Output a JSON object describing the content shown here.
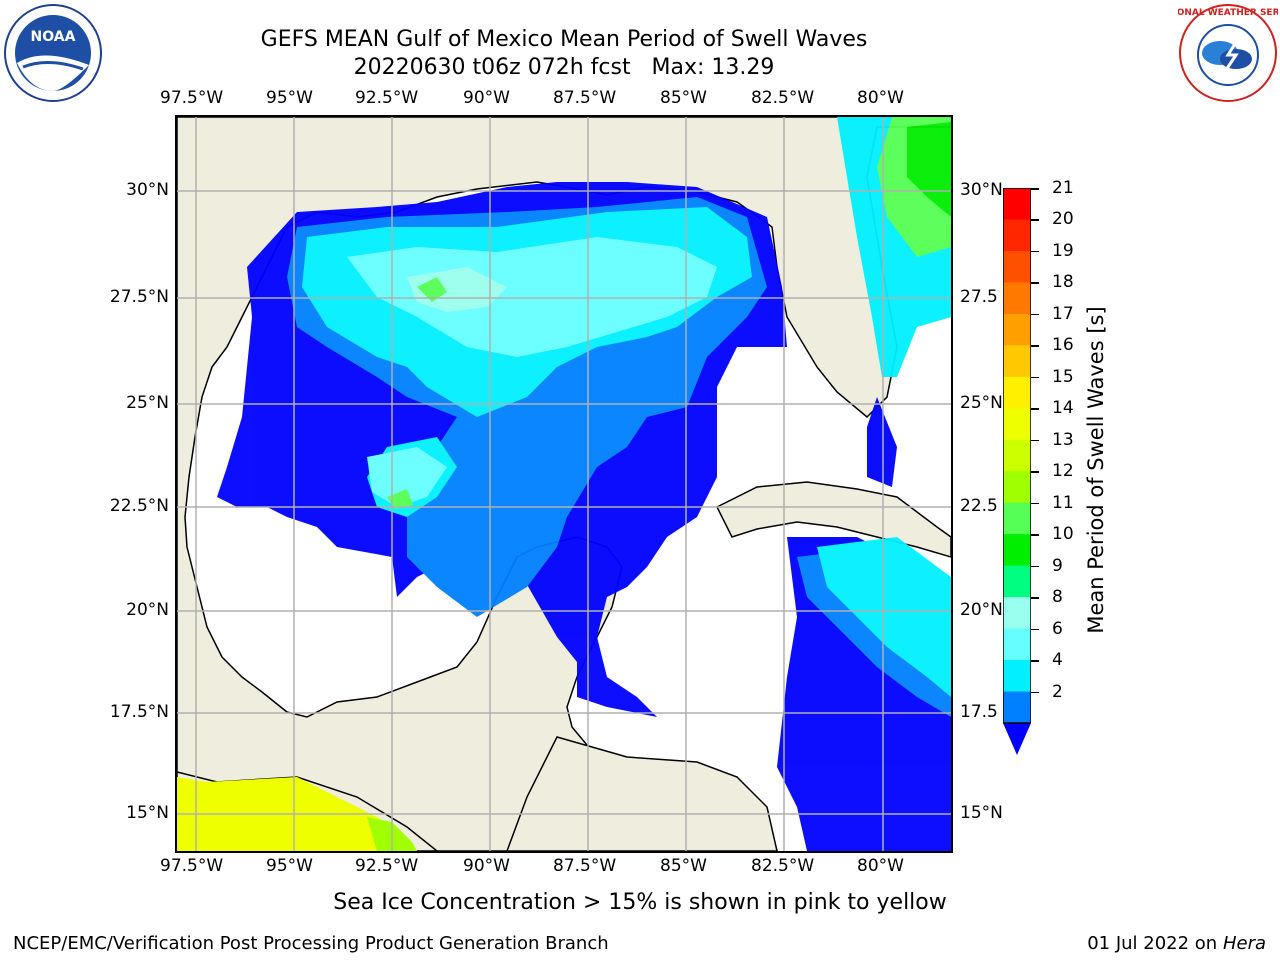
{
  "header": {
    "title_line1": "GEFS MEAN Gulf of Mexico Mean Period of Swell Waves",
    "title_line2": "20220630 t06z 072h fcst   Max: 13.29"
  },
  "logos": {
    "noaa_text": "NOAA",
    "nws_text": "NATIONAL WEATHER SERVICE"
  },
  "map": {
    "lon_labels": [
      "97.5°W",
      "95°W",
      "92.5°W",
      "90°W",
      "87.5°W",
      "85°W",
      "82.5°W",
      "80°W"
    ],
    "lat_labels_left": [
      "30°N",
      "27.5°N",
      "25°N",
      "22.5°N",
      "20°N",
      "17.5°N",
      "15°N"
    ],
    "lat_labels_right": [
      "30°N",
      "27.5",
      "25°N",
      "22.5",
      "20°N",
      "17.5",
      "15°N"
    ],
    "colors": {
      "land": "#eeedde",
      "ocean_low": "#ffffff",
      "grid": "#b0b0b0"
    }
  },
  "colorbar": {
    "label": "Mean Period of Swell Waves [s]",
    "ticks": [
      "21",
      "20",
      "19",
      "18",
      "17",
      "16",
      "15",
      "14",
      "13",
      "12",
      "11",
      "10",
      "9",
      "8",
      "6",
      "4",
      "2"
    ],
    "bands": [
      "#ff0000",
      "#ff2600",
      "#ff5000",
      "#ff7800",
      "#ff9f00",
      "#ffc800",
      "#fff000",
      "#eeff00",
      "#ccff00",
      "#a0ff00",
      "#55ff55",
      "#00ee00",
      "#00ff80",
      "#99ffee",
      "#66ffff",
      "#00f0ff",
      "#0080ff"
    ],
    "extend_color": "#0000ff"
  },
  "footer": {
    "note": "Sea Ice Concentration > 15% is shown in pink to yellow",
    "left": "NCEP/EMC/Verification Post Processing Product Generation Branch",
    "right_prefix": "01 Jul 2022 on ",
    "right_machine": "Hera"
  }
}
